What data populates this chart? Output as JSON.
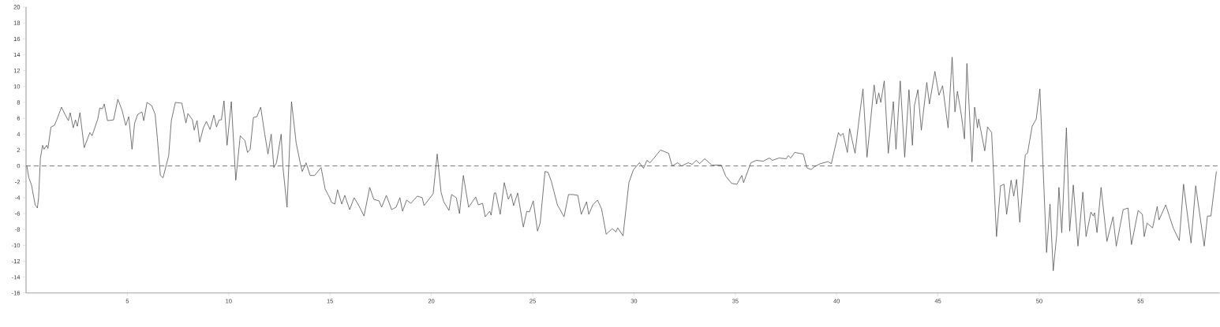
{
  "chart_data": {
    "type": "line",
    "x": [
      0.04,
      0.14,
      0.27,
      0.45,
      0.56,
      0.62,
      0.71,
      0.82,
      0.89,
      1.02,
      1.08,
      1.23,
      1.4,
      1.53,
      1.75,
      1.92,
      2.09,
      2.18,
      2.33,
      2.44,
      2.53,
      2.66,
      2.87,
      3.15,
      3.26,
      3.54,
      3.64,
      3.77,
      3.86,
      4.02,
      4.32,
      4.53,
      4.74,
      4.92,
      5.07,
      5.23,
      5.36,
      5.51,
      5.72,
      5.81,
      5.97,
      6.2,
      6.37,
      6.48,
      6.63,
      6.76,
      7.04,
      7.17,
      7.37,
      7.69,
      7.89,
      7.99,
      8.21,
      8.3,
      8.44,
      8.57,
      8.75,
      8.9,
      9.08,
      9.27,
      9.4,
      9.53,
      9.64,
      9.77,
      9.92,
      10.13,
      10.35,
      10.57,
      10.8,
      10.93,
      11.06,
      11.22,
      11.39,
      11.58,
      11.78,
      11.94,
      12.1,
      12.23,
      12.36,
      12.59,
      12.68,
      12.88,
      13.1,
      13.33,
      13.53,
      13.63,
      13.82,
      14.02,
      14.24,
      14.56,
      14.76,
      14.98,
      15.08,
      15.24,
      15.37,
      15.58,
      15.73,
      15.97,
      16.19,
      16.38,
      16.68,
      16.96,
      17.16,
      17.42,
      17.55,
      17.78,
      18.04,
      18.26,
      18.45,
      18.58,
      18.78,
      18.99,
      19.31,
      19.55,
      19.64,
      20.09,
      20.29,
      20.48,
      20.61,
      20.87,
      21.0,
      21.23,
      21.39,
      21.58,
      21.84,
      22.19,
      22.32,
      22.53,
      22.66,
      22.88,
      22.95,
      23.11,
      23.18,
      23.4,
      23.6,
      23.8,
      23.93,
      24.06,
      24.26,
      24.54,
      24.71,
      24.84,
      25.03,
      25.24,
      25.37,
      25.61,
      25.76,
      25.93,
      26.22,
      26.55,
      26.77,
      26.97,
      27.23,
      27.4,
      27.66,
      27.77,
      27.97,
      28.2,
      28.4,
      28.63,
      28.92,
      29.11,
      29.2,
      29.46,
      29.75,
      29.97,
      30.27,
      30.47,
      30.64,
      30.79,
      30.99,
      31.31,
      31.71,
      31.88,
      32.16,
      32.35,
      32.68,
      32.87,
      33.07,
      33.24,
      33.49,
      33.85,
      34.31,
      34.53,
      34.82,
      35.08,
      35.32,
      35.41,
      35.77,
      36.03,
      36.38,
      36.68,
      36.83,
      37.16,
      37.51,
      37.61,
      37.74,
      37.93,
      38.36,
      38.53,
      38.74,
      38.91,
      39.18,
      39.58,
      39.74,
      40.09,
      40.19,
      40.32,
      40.53,
      40.64,
      40.91,
      41.09,
      41.3,
      41.5,
      41.85,
      41.97,
      42.08,
      42.18,
      42.35,
      42.55,
      42.8,
      42.93,
      43.14,
      43.36,
      43.57,
      43.74,
      43.84,
      44.01,
      44.18,
      44.45,
      44.58,
      44.85,
      45.05,
      45.23,
      45.5,
      45.7,
      45.84,
      45.96,
      46.15,
      46.31,
      46.43,
      46.68,
      46.81,
      46.95,
      47.01,
      47.31,
      47.45,
      47.65,
      47.89,
      48.09,
      48.26,
      48.39,
      48.61,
      48.74,
      48.88,
      49.04,
      49.31,
      49.42,
      49.65,
      49.85,
      50.03,
      50.36,
      50.53,
      50.69,
      50.86,
      50.97,
      51.11,
      51.34,
      51.5,
      51.68,
      51.91,
      52.15,
      52.31,
      52.55,
      52.66,
      52.73,
      52.85,
      53.05,
      53.34,
      53.64,
      53.8,
      54.14,
      54.38,
      54.55,
      54.88,
      55.09,
      55.18,
      55.32,
      55.59,
      55.82,
      55.91,
      56.24,
      56.61,
      56.91,
      57.12,
      57.49,
      57.72,
      58.14,
      58.3,
      58.47,
      58.74
    ],
    "values": [
      0,
      -1.5,
      -2.4,
      -4.9,
      -5.3,
      -4.0,
      1.0,
      2.6,
      2.1,
      2.6,
      2.2,
      4.9,
      5.1,
      5.9,
      7.4,
      6.5,
      5.7,
      6.7,
      4.8,
      5.8,
      5.0,
      6.7,
      2.3,
      4.2,
      3.8,
      5.9,
      7.3,
      7.2,
      7.8,
      5.7,
      5.8,
      8.4,
      7.0,
      5.1,
      6.2,
      2.1,
      5.4,
      6.5,
      6.8,
      5.7,
      8.0,
      7.6,
      6.5,
      3.5,
      -1.2,
      -1.5,
      1.3,
      5.7,
      8.0,
      7.9,
      5.4,
      6.6,
      5.8,
      4.5,
      5.7,
      3.0,
      4.8,
      5.6,
      4.6,
      6.4,
      4.9,
      5.8,
      5.8,
      8.2,
      2.6,
      8.1,
      -1.8,
      3.8,
      3.2,
      1.7,
      2.1,
      6.1,
      6.2,
      7.4,
      4.0,
      1.5,
      4.0,
      -0.2,
      0.4,
      4.0,
      -0.2,
      -5.2,
      8.1,
      2.9,
      0.4,
      -0.7,
      0.4,
      -1.2,
      -1.2,
      -0.2,
      -2.9,
      -4.0,
      -4.6,
      -4.8,
      -3.0,
      -4.8,
      -3.7,
      -5.5,
      -4.0,
      -4.8,
      -6.3,
      -2.7,
      -4.2,
      -4.4,
      -5.2,
      -3.7,
      -5.5,
      -5.2,
      -4.0,
      -5.7,
      -4.3,
      -4.7,
      -3.8,
      -4.0,
      -5.0,
      -3.5,
      1.5,
      -3.3,
      -4.5,
      -5.6,
      -3.6,
      -4.0,
      -6.0,
      -1.2,
      -5.2,
      -3.9,
      -4.9,
      -4.7,
      -6.4,
      -5.7,
      -6.2,
      -3.4,
      -3.4,
      -6.1,
      -2.1,
      -4.2,
      -3.5,
      -5.0,
      -3.4,
      -7.7,
      -5.7,
      -5.8,
      -4.4,
      -8.2,
      -7.2,
      -0.7,
      -0.8,
      -2.0,
      -4.9,
      -6.4,
      -3.6,
      -3.6,
      -3.7,
      -6.1,
      -4.5,
      -6.1,
      -4.9,
      -4.3,
      -5.4,
      -8.6,
      -7.9,
      -8.3,
      -7.8,
      -8.8,
      -2.1,
      -0.5,
      0.4,
      -0.3,
      0.7,
      0.4,
      1.0,
      2.0,
      1.6,
      0,
      0.4,
      0,
      0.4,
      0.2,
      0.7,
      0.3,
      0.9,
      0.1,
      0.1,
      -1.3,
      -2.2,
      -2.3,
      -1.2,
      -2.1,
      0.4,
      0.7,
      0.6,
      1.0,
      0.7,
      1.0,
      0.9,
      1.3,
      1.0,
      1.7,
      1.5,
      -0.23,
      -0.46,
      -0.1,
      0.27,
      0.55,
      0.27,
      4.2,
      3.8,
      4.1,
      1.7,
      4.7,
      1.6,
      5.5,
      9.7,
      1.1,
      10.2,
      7.8,
      9.2,
      8.0,
      10.7,
      1.6,
      8.1,
      2.1,
      10.7,
      1.1,
      9.6,
      2.6,
      7.6,
      9.6,
      4.5,
      10.5,
      7.8,
      11.9,
      8.9,
      10.1,
      4.8,
      13.7,
      6.8,
      9.4,
      6.5,
      3.4,
      12.9,
      0.5,
      7.4,
      4.8,
      5.9,
      1.9,
      4.9,
      4.2,
      -8.9,
      -2.5,
      -2.3,
      -6.1,
      -1.8,
      -3.8,
      -1.7,
      -7.1,
      1.4,
      1.6,
      5.0,
      5.9,
      9.7,
      -10.9,
      -4.8,
      -13.2,
      -8.7,
      -2.7,
      -8.4,
      4.8,
      -8.2,
      -2.4,
      -10.1,
      -3.3,
      -8.9,
      -5.8,
      -6.3,
      -5.9,
      -8.4,
      -2.7,
      -9.5,
      -6.4,
      -10.1,
      -5.5,
      -5.3,
      -9.9,
      -5.6,
      -6.1,
      -8.9,
      -7.2,
      -7.8,
      -5.1,
      -6.8,
      -4.9,
      -7.8,
      -9.4,
      -2.3,
      -9.7,
      -2.5,
      -10.1,
      -6.3,
      -6.3,
      -0.7
    ],
    "color": "#555555",
    "xlim": [
      0,
      58.9
    ],
    "ylim": [
      -16,
      20
    ],
    "xticks": [
      5,
      10,
      15,
      20,
      25,
      30,
      35,
      40,
      45,
      50,
      55
    ],
    "yticks": [
      -16,
      -14,
      -12,
      -10,
      -8,
      -6,
      -4,
      -2,
      0,
      2,
      4,
      6,
      8,
      10,
      12,
      14,
      16,
      18,
      20
    ],
    "ref_lines": [
      {
        "axis": "y",
        "value": 0,
        "color": "#555555",
        "line_style": "dashed"
      }
    ]
  }
}
